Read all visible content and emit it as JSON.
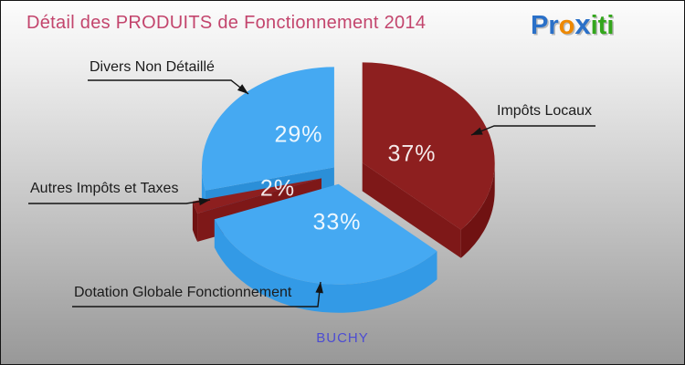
{
  "header": {
    "title": "Détail des PRODUITS de Fonctionnement 2014",
    "title_color": "#C3456D",
    "logo": {
      "pr": "Pr",
      "o": "o",
      "x": "x",
      "iti": "iti",
      "colors": {
        "blue": "#2A70C8",
        "orange": "#EE8800",
        "green": "#33A61C"
      }
    }
  },
  "chart_data": {
    "type": "pie",
    "style": "3d-exploded",
    "title": "Détail des PRODUITS de Fonctionnement 2014",
    "categories": [
      "Impôts Locaux",
      "Dotation Globale Fonctionnement",
      "Autres Impôts et Taxes",
      "Divers Non Détaillé"
    ],
    "values": [
      37,
      33,
      2,
      29
    ],
    "unit": "%",
    "labels_pct": [
      "37%",
      "33%",
      "2%",
      "29%"
    ],
    "colors": [
      "#8D1F1F",
      "#45A9F2",
      "#8D1F1F",
      "#45A9F2"
    ],
    "side_colors": [
      "#701212",
      "#339AE6",
      "#701212",
      "#339AE6"
    ],
    "cut_colors": [
      "#7E1818",
      "#2B8FD8",
      "#7E1818",
      "#2B8FD8"
    ],
    "explode": [
      26,
      13,
      22,
      9
    ],
    "legend_position": "callouts",
    "label_text_color": "#FFFFFF"
  },
  "footer": {
    "municipality": "BUCHY",
    "color": "#4C4CD2"
  }
}
